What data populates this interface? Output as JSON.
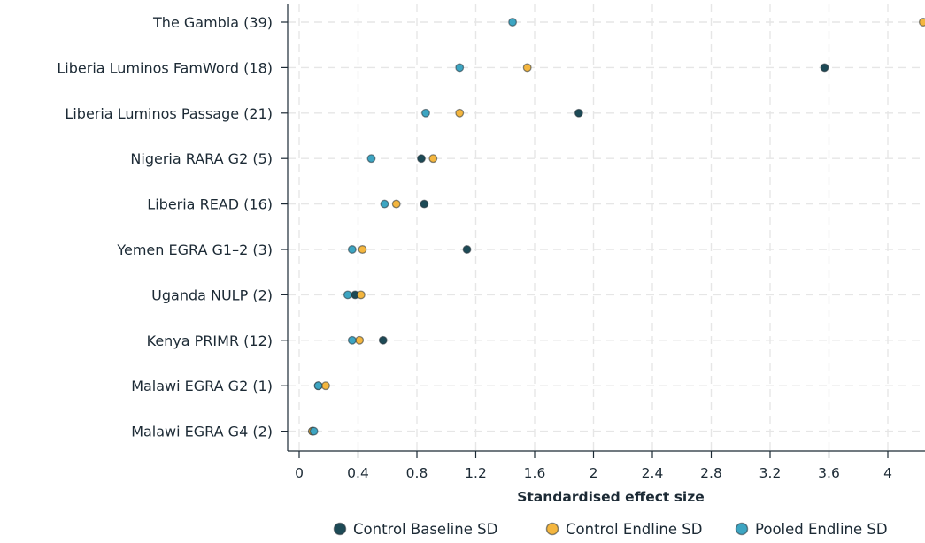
{
  "chart_data": {
    "type": "scatter",
    "title": "",
    "xlabel": "Standardised effect size",
    "ylabel": "",
    "xlim": [
      -0.08,
      4.25
    ],
    "xticks": [
      0,
      0.4,
      0.8,
      1.2,
      1.6,
      2,
      2.4,
      2.8,
      3.2,
      3.6,
      4
    ],
    "xtick_labels": [
      "0",
      "0.4",
      "0.8",
      "1.2",
      "1.6",
      "2",
      "2.4",
      "2.8",
      "3.2",
      "3.6",
      "4"
    ],
    "grid": true,
    "legend_position": "bottom-right",
    "categories": [
      "The Gambia (39)",
      "Liberia Luminos FamWord (18)",
      "Liberia Luminos Passage (21)",
      "Nigeria RARA G2 (5)",
      "Liberia READ (16)",
      "Yemen EGRA G1–2 (3)",
      "Uganda NULP (2)",
      "Kenya PRIMR (12)",
      "Malawi EGRA G2 (1)",
      "Malawi EGRA G4 (2)"
    ],
    "series": [
      {
        "name": "Control Baseline SD",
        "color": "#1d4a56",
        "values": [
          null,
          3.57,
          1.9,
          0.83,
          0.85,
          1.14,
          0.38,
          0.57,
          0.13,
          0.09
        ]
      },
      {
        "name": "Control Endline SD",
        "color": "#f4b63f",
        "values": [
          4.24,
          1.55,
          1.09,
          0.91,
          0.66,
          0.43,
          0.42,
          0.41,
          0.18,
          0.09
        ]
      },
      {
        "name": "Pooled Endline SD",
        "color": "#3da5c2",
        "values": [
          1.45,
          1.09,
          0.86,
          0.49,
          0.58,
          0.36,
          0.33,
          0.36,
          0.13,
          0.1
        ]
      }
    ]
  }
}
